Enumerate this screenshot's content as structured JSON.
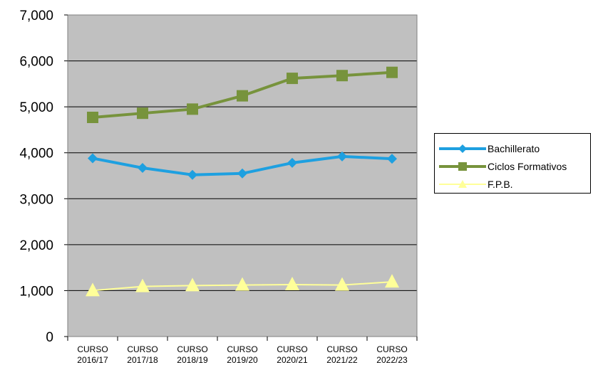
{
  "chart_data": {
    "type": "line",
    "categories": [
      [
        "CURSO",
        "2016/17"
      ],
      [
        "CURSO",
        "2017/18"
      ],
      [
        "CURSO",
        "2018/19"
      ],
      [
        "CURSO",
        "2019/20"
      ],
      [
        "CURSO",
        "2020/21"
      ],
      [
        "CURSO",
        "2021/22"
      ],
      [
        "CURSO",
        "2022/23"
      ]
    ],
    "yticks": [
      "0",
      "1,000",
      "2,000",
      "3,000",
      "4,000",
      "5,000",
      "6,000",
      "7,000"
    ],
    "ylim": [
      0,
      7000
    ],
    "grid": true,
    "plot_background": "#c0c0c0",
    "legend_position": "right",
    "series": [
      {
        "name": "Bachillerato",
        "color": "#1ea0e0",
        "marker": "diamond",
        "values": [
          3880,
          3670,
          3520,
          3550,
          3780,
          3920,
          3870
        ]
      },
      {
        "name": "Ciclos Formativos",
        "color": "#77933c",
        "marker": "square",
        "values": [
          4770,
          4860,
          4950,
          5240,
          5620,
          5680,
          5750
        ]
      },
      {
        "name": "F.P.B.",
        "color": "#ffff99",
        "marker": "triangle",
        "values": [
          1000,
          1090,
          1110,
          1120,
          1130,
          1120,
          1190
        ]
      }
    ]
  }
}
